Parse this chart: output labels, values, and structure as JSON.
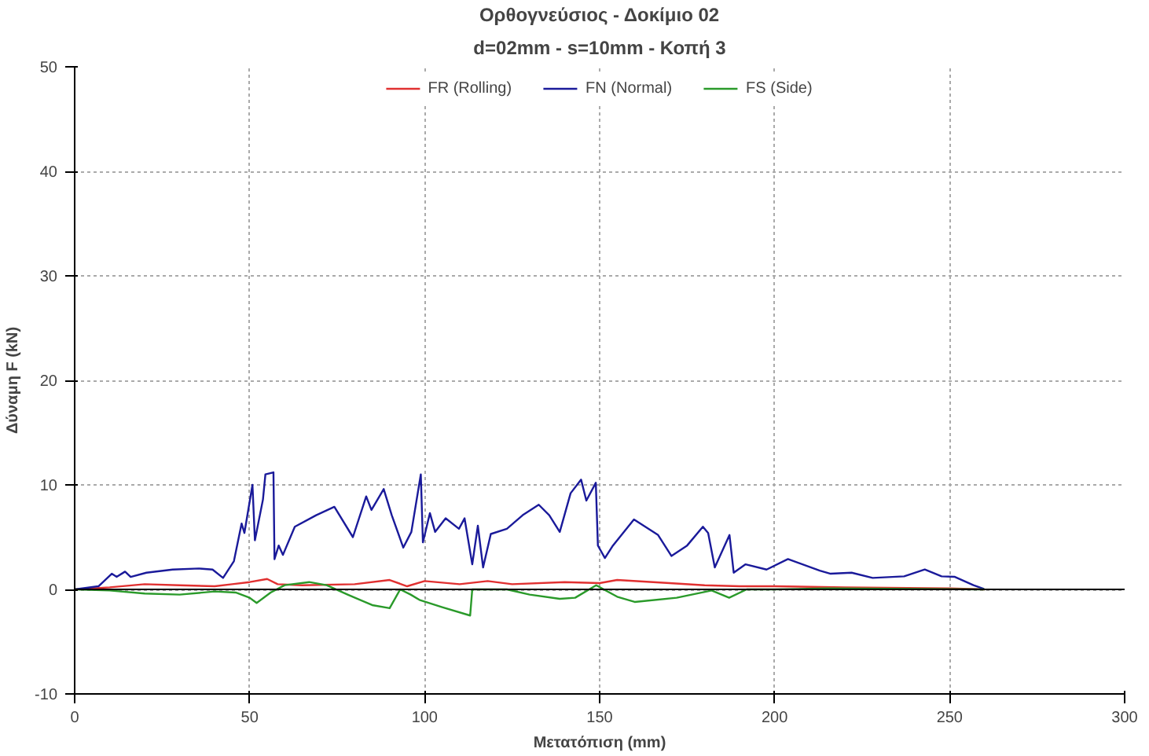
{
  "chart_data": {
    "type": "line",
    "title": "Ορθογνεύσιος - Δοκίμιο 02",
    "subtitle": "d=02mm - s=10mm - Κοπή 3",
    "xlabel": "Μετατόπιση (mm)",
    "ylabel": "Δύναμη F (kN)",
    "xlim": [
      0,
      300
    ],
    "xticks": [
      0,
      50,
      100,
      150,
      200,
      250,
      300
    ],
    "ylim": [
      -10,
      50
    ],
    "yticks": [
      -10,
      0,
      10,
      20,
      30,
      40,
      50
    ],
    "grid": true,
    "legend": "top",
    "line_style": "solid",
    "marker": "none",
    "series": [
      {
        "name": "FR (Rolling)",
        "color": "#e03030",
        "x": [
          0,
          10,
          20,
          30,
          40,
          45,
          50,
          55,
          58,
          65,
          80,
          90,
          95,
          100,
          110,
          118,
          125,
          140,
          150,
          155,
          170,
          180,
          190,
          200,
          220,
          250,
          260
        ],
        "values": [
          0,
          0.2,
          0.5,
          0.4,
          0.3,
          0.5,
          0.7,
          1.0,
          0.5,
          0.4,
          0.5,
          0.9,
          0.3,
          0.8,
          0.5,
          0.8,
          0.5,
          0.7,
          0.6,
          0.9,
          0.6,
          0.4,
          0.3,
          0.3,
          0.2,
          0.1,
          0
        ]
      },
      {
        "name": "FN (Normal)",
        "color": "#1a1a9a",
        "x": [
          0,
          6.8,
          10.6,
          12,
          14.4,
          16,
          20.5,
          28,
          35.6,
          39.4,
          42.4,
          45.5,
          47.7,
          48.5,
          50.8,
          51.5,
          53.8,
          54.5,
          56.8,
          57.1,
          58.3,
          59.5,
          62.9,
          69,
          74.2,
          79.5,
          83.3,
          84.8,
          88.3,
          90.6,
          93.9,
          96.2,
          98.9,
          99.5,
          101.5,
          103,
          106,
          109.8,
          111.4,
          113.6,
          115.2,
          116.7,
          118.9,
          123.5,
          128,
          132.6,
          135.6,
          138.6,
          141.7,
          144.7,
          146.2,
          148.9,
          149.5,
          151.5,
          153.8,
          159.8,
          166.7,
          170.5,
          175,
          179.5,
          181,
          182.9,
          187.1,
          188.3,
          191.7,
          197.7,
          203.8,
          212.9,
          216,
          222,
          228,
          237,
          242.9,
          247.7,
          251.5,
          256.8,
          259.8
        ],
        "values": [
          0,
          0.3,
          1.5,
          1.2,
          1.7,
          1.2,
          1.6,
          1.9,
          2.0,
          1.9,
          1.1,
          2.7,
          6.3,
          5.4,
          10,
          4.7,
          8.6,
          11,
          11.2,
          2.9,
          4.2,
          3.3,
          6.0,
          7.1,
          7.9,
          5.0,
          8.9,
          7.6,
          9.6,
          7.1,
          4.0,
          5.5,
          11,
          4.5,
          7.3,
          5.5,
          6.8,
          5.8,
          6.8,
          2.4,
          6.1,
          2.1,
          5.3,
          5.8,
          7.1,
          8.1,
          7.1,
          5.5,
          9.2,
          10.5,
          8.5,
          10.2,
          4.2,
          3.0,
          4.2,
          6.7,
          5.2,
          3.2,
          4.2,
          6.0,
          5.4,
          2.1,
          5.2,
          1.6,
          2.4,
          1.9,
          2.9,
          1.8,
          1.5,
          1.6,
          1.1,
          1.25,
          1.9,
          1.25,
          1.2,
          0.4,
          0.05
        ]
      },
      {
        "name": "FS (Side)",
        "color": "#2a9a2a",
        "x": [
          0,
          10,
          20,
          30,
          40,
          46,
          50,
          52,
          56,
          60,
          67,
          72,
          78,
          85,
          90,
          93,
          96,
          98.5,
          105,
          113,
          113.6,
          123.5,
          130,
          138.6,
          143,
          149,
          155,
          160,
          172,
          182,
          187,
          192,
          200,
          215,
          260
        ],
        "values": [
          0,
          -0.1,
          -0.4,
          -0.5,
          -0.2,
          -0.3,
          -0.8,
          -1.3,
          -0.3,
          0.4,
          0.7,
          0.4,
          -0.5,
          -1.5,
          -1.8,
          0,
          -0.5,
          -1.0,
          -1.7,
          -2.5,
          0,
          0,
          -0.5,
          -0.9,
          -0.8,
          0.4,
          -0.7,
          -1.2,
          -0.8,
          -0.1,
          -0.8,
          0,
          0,
          0.1,
          0
        ]
      }
    ]
  }
}
